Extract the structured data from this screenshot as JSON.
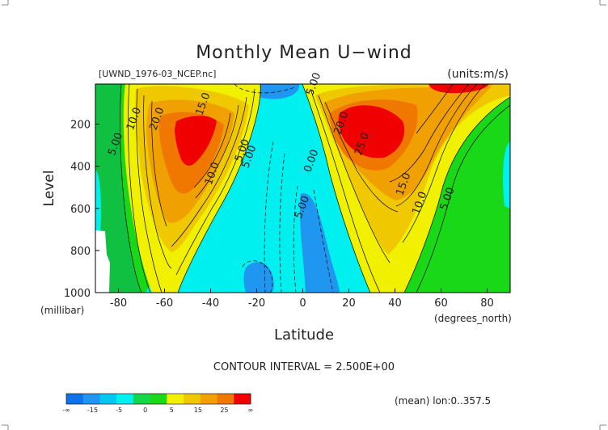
{
  "chart_data": {
    "type": "contour",
    "title": "Monthly Mean U−wind",
    "dataset_label": "[UWND_1976-03_NCEP.nc]",
    "units_label": "(units:m/s)",
    "xlabel": "Latitude",
    "ylabel": "Level",
    "x_unit_label": "(degrees_north)",
    "y_unit_label": "(millibar)",
    "xlim": [
      -90,
      90
    ],
    "ylim": [
      1000,
      10
    ],
    "y_reversed": true,
    "x_ticks": [
      -80,
      -60,
      -40,
      -20,
      0,
      20,
      40,
      60,
      80
    ],
    "y_ticks": [
      200,
      400,
      600,
      800,
      1000
    ],
    "contour_interval_text": "CONTOUR INTERVAL = 2.500E+00",
    "footer_text": "(mean) lon:0..357.5",
    "contour_labels": [
      {
        "text": "5.00",
        "x": -80,
        "y": 300
      },
      {
        "text": "10.0",
        "x": -72,
        "y": 180
      },
      {
        "text": "20.0",
        "x": -62,
        "y": 180
      },
      {
        "text": "15.0",
        "x": -42,
        "y": 110
      },
      {
        "text": "10.0",
        "x": -38,
        "y": 440
      },
      {
        "text": "5.00",
        "x": -25,
        "y": 330
      },
      {
        "text": "5.00",
        "x": -22,
        "y": 360
      },
      {
        "text": "5.00",
        "x": 6,
        "y": 15
      },
      {
        "text": "0.00",
        "x": 5,
        "y": 380
      },
      {
        "text": "5.00",
        "x": 1,
        "y": 600
      },
      {
        "text": "20.0",
        "x": 18,
        "y": 200
      },
      {
        "text": "25.0",
        "x": 27,
        "y": 300
      },
      {
        "text": "15.0",
        "x": 45,
        "y": 490
      },
      {
        "text": "10.0",
        "x": 52,
        "y": 580
      },
      {
        "text": "5.00",
        "x": 64,
        "y": 560
      }
    ],
    "colorbar": {
      "colors": [
        "#0f72e8",
        "#1f96f0",
        "#00c8f0",
        "#00f0f0",
        "#10d848",
        "#18d818",
        "#f0f000",
        "#f0c800",
        "#f0a000",
        "#f07800",
        "#f00000"
      ],
      "tick_labels": [
        "-∞",
        "-15",
        "-5",
        "0",
        "5",
        "15",
        "25",
        "∞"
      ]
    }
  }
}
